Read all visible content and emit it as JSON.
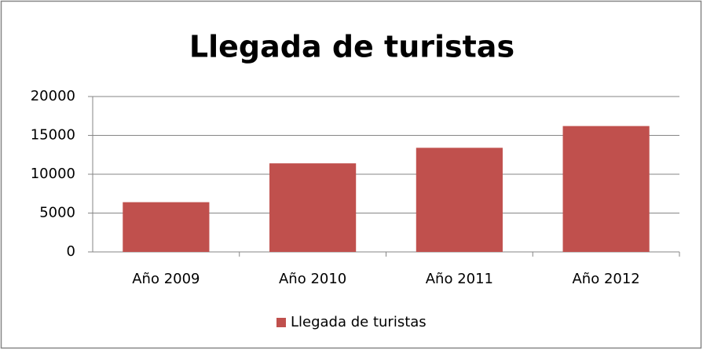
{
  "chart_data": {
    "type": "bar",
    "title": "Llegada de turistas",
    "categories": [
      "Año 2009",
      "Año 2010",
      "Año 2011",
      "Año 2012"
    ],
    "series": [
      {
        "name": "Llegada de turistas",
        "color": "#c0504d",
        "values": [
          6400,
          11400,
          13400,
          16200
        ]
      }
    ],
    "ylim": [
      0,
      20000
    ],
    "yticks": [
      0,
      5000,
      10000,
      15000,
      20000
    ],
    "grid": true,
    "legend": "bottom"
  }
}
